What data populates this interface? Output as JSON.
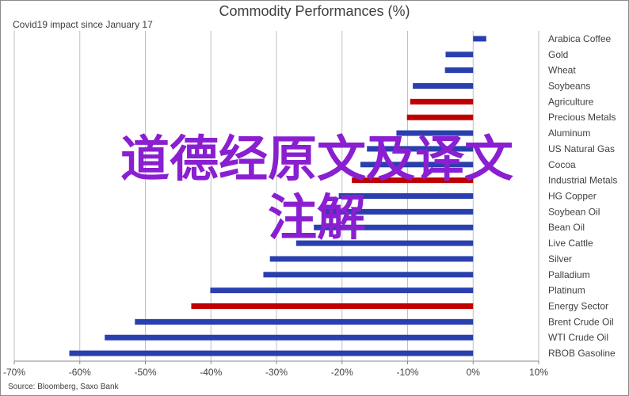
{
  "chart_data": {
    "type": "bar",
    "orientation": "horizontal",
    "title": "Commodity Performances (%)",
    "subtitle": "Covid19 impact since January 17",
    "source": "Source: Bloomberg, Saxo Bank",
    "categories": [
      "Arabica Coffee",
      "Gold",
      "Wheat",
      "Soybeans",
      "Agriculture",
      "Precious Metals",
      "Aluminum",
      "US Natural Gas",
      "Cocoa",
      "Industrial Metals",
      "HG Copper",
      "Soybean Oil",
      "Bean Oil",
      "Live Cattle",
      "Silver",
      "Palladium",
      "Platinum",
      "Energy Sector",
      "Brent Crude Oil",
      "WTI Crude Oil",
      "RBOB Gasoline"
    ],
    "values": [
      2.0,
      -4.2,
      -4.3,
      -9.2,
      -9.6,
      -10.1,
      -11.7,
      -16.2,
      -17.2,
      -18.5,
      -20.5,
      -23.0,
      -24.3,
      -27.0,
      -31.0,
      -32.0,
      -40.1,
      -43.0,
      -51.6,
      -56.2,
      -61.6
    ],
    "bar_colors": [
      "#2a3fae",
      "#2a3fae",
      "#2a3fae",
      "#2a3fae",
      "#c00000",
      "#c00000",
      "#2a3fae",
      "#2a3fae",
      "#2a3fae",
      "#c00000",
      "#2a3fae",
      "#2a3fae",
      "#2a3fae",
      "#2a3fae",
      "#2a3fae",
      "#2a3fae",
      "#2a3fae",
      "#c00000",
      "#2a3fae",
      "#2a3fae",
      "#2a3fae"
    ],
    "xlim": [
      -70,
      10
    ],
    "xticks": [
      -70,
      -60,
      -50,
      -40,
      -30,
      -20,
      -10,
      0,
      10
    ],
    "xtick_labels": [
      "-70%",
      "-60%",
      "-50%",
      "-40%",
      "-30%",
      "-20%",
      "-10%",
      "0%",
      "10%"
    ],
    "grid": true,
    "legend": "none"
  },
  "overlay_text": {
    "line1": "道德经原文及译文",
    "line2": "注解"
  }
}
